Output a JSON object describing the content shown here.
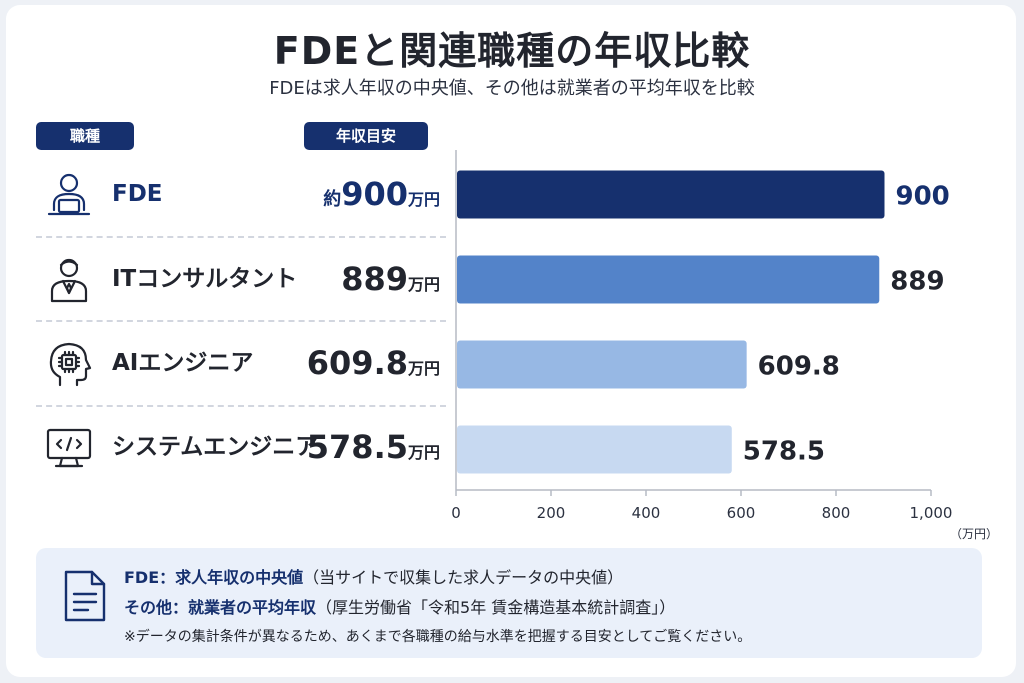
{
  "title": "FDEと関連職種の年収比較",
  "subtitle": "FDEは求人年収の中央値、その他は就業者の平均年収を比較",
  "headers": {
    "job": "職種",
    "salary": "年収目安"
  },
  "rows": [
    {
      "label": "FDE",
      "prefix": "約",
      "value": "900",
      "unit": "万円",
      "icon": "person-laptop-icon"
    },
    {
      "label": "ITコンサルタント",
      "prefix": "",
      "value": "889",
      "unit": "万円",
      "icon": "businessman-icon"
    },
    {
      "label": "AIエンジニア",
      "prefix": "",
      "value": "609.8",
      "unit": "万円",
      "icon": "ai-head-chip-icon"
    },
    {
      "label": "システムエンジニア",
      "prefix": "",
      "value": "578.5",
      "unit": "万円",
      "icon": "monitor-code-icon"
    }
  ],
  "chart_data": {
    "type": "bar",
    "orientation": "horizontal",
    "categories": [
      "FDE",
      "ITコンサルタント",
      "AIエンジニア",
      "システムエンジニア"
    ],
    "values": [
      900,
      889,
      609.8,
      578.5
    ],
    "value_labels": [
      "900",
      "889",
      "609.8",
      "578.5"
    ],
    "colors": [
      "#16306e",
      "#5383c9",
      "#97b8e4",
      "#c7d9f1"
    ],
    "xlim": [
      0,
      1000
    ],
    "xticks": [
      0,
      200,
      400,
      600,
      800,
      1000
    ],
    "xtick_labels": [
      "0",
      "200",
      "400",
      "600",
      "800",
      "1,000"
    ],
    "xunit": "（万円）",
    "grid": false
  },
  "note": {
    "line1_head": "FDE：求人年収の中央値",
    "line1_tail": "（当サイトで収集した求人データの中央値）",
    "line2_head": "その他：就業者の平均年収",
    "line2_tail": "（厚生労働省「令和5年 賃金構造基本統計調査」）",
    "line3": "※データの集計条件が異なるため、あくまで各職種の給与水準を把握する目安としてご覧ください。",
    "icon": "document-icon"
  }
}
